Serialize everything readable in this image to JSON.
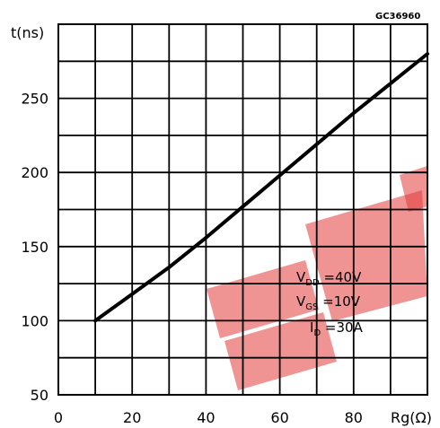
{
  "figure_code": "GC36960",
  "chart_data": {
    "type": "line",
    "xlabel": "Rg(Ω)",
    "ylabel": "t(ns)",
    "xlim": [
      0,
      100
    ],
    "ylim": [
      50,
      300
    ],
    "x_ticks": [
      0,
      20,
      40,
      60,
      80
    ],
    "y_ticks": [
      50,
      100,
      150,
      200,
      250
    ],
    "x_tick_labels": [
      "0",
      "20",
      "40",
      "60",
      "80"
    ],
    "y_tick_labels": [
      "50",
      "100",
      "150",
      "200",
      "250"
    ],
    "grid": true,
    "x_grid_step": 10,
    "y_grid_step": 25,
    "series": [
      {
        "x": [
          10,
          20,
          30,
          40,
          50,
          60,
          70,
          80,
          90,
          100
        ],
        "y": [
          100,
          118,
          136,
          156,
          177,
          198,
          219,
          240,
          260,
          280
        ]
      }
    ],
    "annotations": [
      {
        "main": "V",
        "sub": "DD",
        "rest": " =40V"
      },
      {
        "main": "V",
        "sub": "GS",
        "rest": " =10V"
      },
      {
        "main": "I",
        "sub": "D",
        "rest": " =30A"
      }
    ]
  },
  "watermark": {
    "color": "#e23a3a",
    "opacity": 0.55
  }
}
